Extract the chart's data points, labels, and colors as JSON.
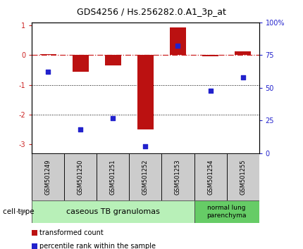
{
  "title": "GDS4256 / Hs.256282.0.A1_3p_at",
  "samples": [
    "GSM501249",
    "GSM501250",
    "GSM501251",
    "GSM501252",
    "GSM501253",
    "GSM501254",
    "GSM501255"
  ],
  "transformed_count": [
    0.02,
    -0.55,
    -0.35,
    -2.5,
    0.92,
    -0.05,
    0.13
  ],
  "percentile_rank": [
    62,
    18,
    27,
    5,
    82,
    48,
    58
  ],
  "ylim_left": [
    -3.3,
    1.1
  ],
  "ylim_right": [
    0,
    100
  ],
  "yticks_left": [
    1,
    0,
    -1,
    -2,
    -3
  ],
  "yticks_right": [
    0,
    25,
    50,
    75,
    100
  ],
  "ytick_labels_right": [
    "0",
    "25",
    "50",
    "75",
    "100%"
  ],
  "dotted_lines": [
    -1,
    -2
  ],
  "bar_color": "#bb1111",
  "dot_color": "#2222cc",
  "bar_width": 0.5,
  "cell_type_groups": [
    {
      "label": "caseous TB granulomas",
      "indices": [
        0,
        1,
        2,
        3,
        4
      ],
      "color": "#b8f0b8"
    },
    {
      "label": "normal lung\nparenchyma",
      "indices": [
        5,
        6
      ],
      "color": "#66cc66"
    }
  ],
  "legend_items": [
    {
      "color": "#bb1111",
      "label": "transformed count"
    },
    {
      "color": "#2222cc",
      "label": "percentile rank within the sample"
    }
  ],
  "cell_type_label": "cell type",
  "ref_line_color": "#cc2222",
  "left_tick_color": "#cc2222",
  "right_tick_color": "#2222cc",
  "tick_fontsize": 7,
  "title_fontsize": 9,
  "sample_fontsize": 6,
  "legend_fontsize": 7,
  "cell_type_fontsize": 8,
  "sample_box_color": "#cccccc"
}
